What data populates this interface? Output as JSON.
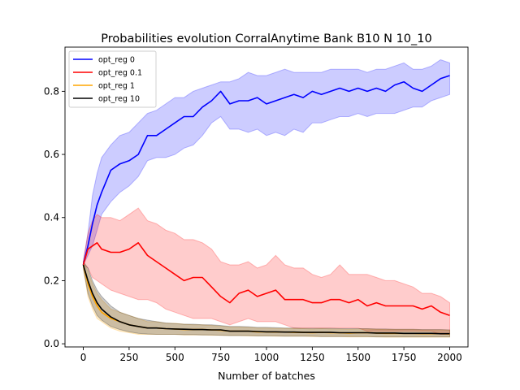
{
  "chart_data": {
    "type": "line",
    "title": "Probabilities evolution CorralAnytime Bank B10 N 10_10",
    "xlabel": "Number of batches",
    "ylabel": "",
    "xlim": [
      -100,
      2100
    ],
    "ylim": [
      -0.01,
      0.94
    ],
    "xticks": [
      0,
      250,
      500,
      750,
      1000,
      1250,
      1500,
      1750,
      2000
    ],
    "xtick_labels": [
      "0",
      "250",
      "500",
      "750",
      "1000",
      "1250",
      "1500",
      "1750",
      "2000"
    ],
    "yticks": [
      0.0,
      0.2,
      0.4,
      0.6,
      0.8
    ],
    "ytick_labels": [
      "0.0",
      "0.2",
      "0.4",
      "0.6",
      "0.8"
    ],
    "grid": false,
    "legend_position": "top-left",
    "x": [
      0,
      25,
      50,
      75,
      100,
      150,
      200,
      250,
      300,
      350,
      400,
      450,
      500,
      550,
      600,
      650,
      700,
      750,
      800,
      850,
      900,
      950,
      1000,
      1050,
      1100,
      1150,
      1200,
      1250,
      1300,
      1350,
      1400,
      1450,
      1500,
      1550,
      1600,
      1650,
      1700,
      1750,
      1800,
      1850,
      1900,
      1950,
      2000
    ],
    "series": [
      {
        "name": "opt_reg 0",
        "color": "#0000ff",
        "mean": [
          0.25,
          0.31,
          0.38,
          0.44,
          0.48,
          0.55,
          0.57,
          0.58,
          0.6,
          0.66,
          0.66,
          0.68,
          0.7,
          0.72,
          0.72,
          0.75,
          0.77,
          0.8,
          0.76,
          0.77,
          0.77,
          0.78,
          0.76,
          0.77,
          0.78,
          0.79,
          0.78,
          0.8,
          0.79,
          0.8,
          0.81,
          0.8,
          0.81,
          0.8,
          0.81,
          0.8,
          0.82,
          0.83,
          0.81,
          0.8,
          0.82,
          0.84,
          0.85
        ],
        "lower": [
          0.25,
          0.28,
          0.31,
          0.36,
          0.41,
          0.45,
          0.48,
          0.5,
          0.53,
          0.58,
          0.59,
          0.59,
          0.6,
          0.62,
          0.63,
          0.66,
          0.7,
          0.72,
          0.68,
          0.68,
          0.67,
          0.68,
          0.66,
          0.67,
          0.66,
          0.68,
          0.67,
          0.7,
          0.7,
          0.71,
          0.72,
          0.72,
          0.73,
          0.72,
          0.73,
          0.73,
          0.73,
          0.74,
          0.75,
          0.75,
          0.77,
          0.78,
          0.79
        ],
        "upper": [
          0.26,
          0.35,
          0.47,
          0.54,
          0.59,
          0.63,
          0.66,
          0.67,
          0.7,
          0.73,
          0.74,
          0.76,
          0.78,
          0.78,
          0.8,
          0.81,
          0.82,
          0.83,
          0.83,
          0.84,
          0.86,
          0.85,
          0.85,
          0.86,
          0.87,
          0.86,
          0.86,
          0.86,
          0.86,
          0.87,
          0.87,
          0.87,
          0.87,
          0.86,
          0.87,
          0.87,
          0.88,
          0.89,
          0.87,
          0.87,
          0.88,
          0.9,
          0.89
        ]
      },
      {
        "name": "opt_reg 0.1",
        "color": "#ff0000",
        "mean": [
          0.25,
          0.3,
          0.31,
          0.32,
          0.3,
          0.29,
          0.29,
          0.3,
          0.32,
          0.28,
          0.26,
          0.24,
          0.22,
          0.2,
          0.21,
          0.21,
          0.18,
          0.15,
          0.13,
          0.16,
          0.17,
          0.15,
          0.16,
          0.17,
          0.14,
          0.14,
          0.14,
          0.13,
          0.13,
          0.14,
          0.14,
          0.13,
          0.14,
          0.12,
          0.13,
          0.12,
          0.12,
          0.12,
          0.12,
          0.11,
          0.12,
          0.1,
          0.09
        ],
        "lower": [
          0.25,
          0.24,
          0.21,
          0.2,
          0.19,
          0.17,
          0.16,
          0.15,
          0.14,
          0.14,
          0.13,
          0.11,
          0.1,
          0.09,
          0.08,
          0.08,
          0.08,
          0.07,
          0.06,
          0.07,
          0.08,
          0.07,
          0.07,
          0.07,
          0.06,
          0.05,
          0.05,
          0.05,
          0.05,
          0.05,
          0.05,
          0.05,
          0.05,
          0.04,
          0.04,
          0.04,
          0.04,
          0.04,
          0.04,
          0.04,
          0.04,
          0.03,
          0.03
        ],
        "upper": [
          0.26,
          0.35,
          0.39,
          0.41,
          0.4,
          0.4,
          0.39,
          0.41,
          0.43,
          0.39,
          0.38,
          0.36,
          0.35,
          0.33,
          0.33,
          0.32,
          0.3,
          0.26,
          0.25,
          0.25,
          0.26,
          0.24,
          0.25,
          0.28,
          0.25,
          0.24,
          0.24,
          0.22,
          0.21,
          0.22,
          0.25,
          0.22,
          0.22,
          0.22,
          0.21,
          0.2,
          0.2,
          0.19,
          0.18,
          0.16,
          0.16,
          0.15,
          0.13
        ]
      },
      {
        "name": "opt_reg 1",
        "color": "#ffa500",
        "mean": [
          0.25,
          0.19,
          0.15,
          0.12,
          0.1,
          0.08,
          0.07,
          0.06,
          0.055,
          0.05,
          0.05,
          0.048,
          0.047,
          0.045,
          0.045,
          0.045,
          0.044,
          0.043,
          0.04,
          0.04,
          0.04,
          0.038,
          0.038,
          0.037,
          0.037,
          0.036,
          0.036,
          0.035,
          0.036,
          0.035,
          0.035,
          0.034,
          0.035,
          0.035,
          0.034,
          0.033,
          0.033,
          0.033,
          0.033,
          0.032,
          0.032,
          0.032,
          0.031
        ],
        "lower": [
          0.24,
          0.15,
          0.11,
          0.08,
          0.07,
          0.05,
          0.04,
          0.035,
          0.03,
          0.03,
          0.03,
          0.03,
          0.03,
          0.028,
          0.028,
          0.028,
          0.027,
          0.027,
          0.026,
          0.026,
          0.025,
          0.025,
          0.025,
          0.024,
          0.024,
          0.024,
          0.024,
          0.023,
          0.023,
          0.023,
          0.023,
          0.022,
          0.022,
          0.022,
          0.022,
          0.021,
          0.021,
          0.021,
          0.021,
          0.021,
          0.021,
          0.021,
          0.021
        ],
        "upper": [
          0.26,
          0.23,
          0.19,
          0.16,
          0.14,
          0.11,
          0.1,
          0.09,
          0.08,
          0.07,
          0.07,
          0.065,
          0.065,
          0.062,
          0.06,
          0.06,
          0.058,
          0.056,
          0.053,
          0.053,
          0.052,
          0.05,
          0.05,
          0.049,
          0.049,
          0.048,
          0.048,
          0.047,
          0.048,
          0.047,
          0.047,
          0.046,
          0.047,
          0.047,
          0.046,
          0.045,
          0.045,
          0.045,
          0.045,
          0.044,
          0.044,
          0.044,
          0.043
        ]
      },
      {
        "name": "opt_reg 10",
        "color": "#000000",
        "mean": [
          0.25,
          0.2,
          0.16,
          0.13,
          0.11,
          0.085,
          0.07,
          0.06,
          0.055,
          0.05,
          0.05,
          0.048,
          0.047,
          0.046,
          0.045,
          0.045,
          0.044,
          0.044,
          0.04,
          0.04,
          0.04,
          0.039,
          0.038,
          0.038,
          0.037,
          0.037,
          0.036,
          0.036,
          0.036,
          0.036,
          0.035,
          0.035,
          0.035,
          0.035,
          0.034,
          0.034,
          0.034,
          0.033,
          0.033,
          0.033,
          0.033,
          0.032,
          0.032
        ],
        "lower": [
          0.24,
          0.16,
          0.12,
          0.09,
          0.075,
          0.055,
          0.045,
          0.038,
          0.033,
          0.031,
          0.03,
          0.03,
          0.03,
          0.029,
          0.029,
          0.028,
          0.028,
          0.027,
          0.026,
          0.026,
          0.026,
          0.025,
          0.025,
          0.025,
          0.024,
          0.024,
          0.024,
          0.024,
          0.023,
          0.023,
          0.023,
          0.023,
          0.023,
          0.023,
          0.022,
          0.022,
          0.022,
          0.022,
          0.022,
          0.022,
          0.022,
          0.022,
          0.022
        ],
        "upper": [
          0.26,
          0.24,
          0.2,
          0.17,
          0.15,
          0.12,
          0.1,
          0.09,
          0.08,
          0.075,
          0.07,
          0.066,
          0.064,
          0.062,
          0.062,
          0.06,
          0.06,
          0.058,
          0.055,
          0.055,
          0.054,
          0.052,
          0.052,
          0.051,
          0.05,
          0.05,
          0.049,
          0.049,
          0.049,
          0.049,
          0.048,
          0.048,
          0.048,
          0.048,
          0.047,
          0.047,
          0.046,
          0.046,
          0.046,
          0.045,
          0.045,
          0.045,
          0.044
        ]
      }
    ]
  }
}
